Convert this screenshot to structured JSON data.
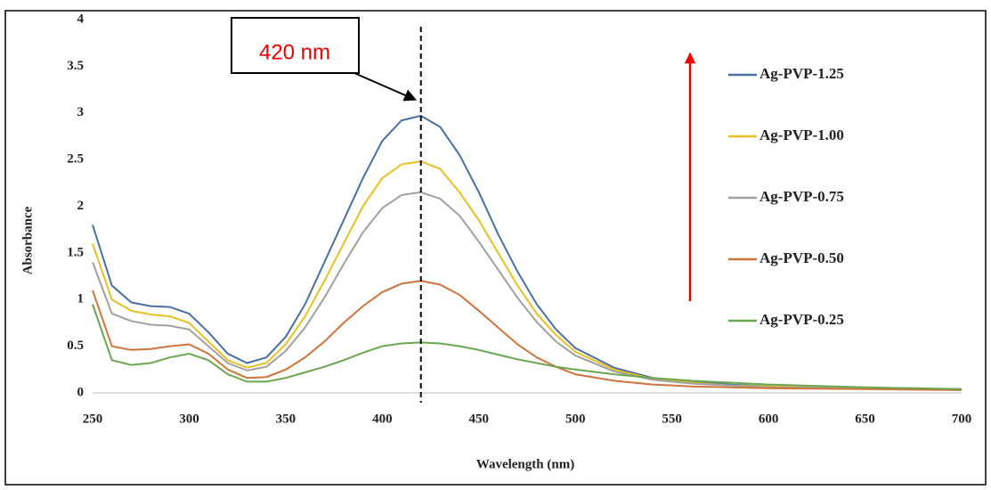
{
  "chart_data": {
    "type": "line",
    "xlabel": "Wavelength (nm)",
    "ylabel": "Absorbance",
    "x": [
      250,
      260,
      270,
      280,
      290,
      300,
      310,
      320,
      330,
      340,
      350,
      360,
      370,
      380,
      390,
      400,
      410,
      420,
      430,
      440,
      450,
      460,
      470,
      480,
      490,
      500,
      520,
      540,
      560,
      580,
      600,
      650,
      700
    ],
    "series": [
      {
        "name": "Ag-PVP-1.25",
        "color": "#4a6fa5",
        "values": [
          1.8,
          1.15,
          0.97,
          0.93,
          0.92,
          0.85,
          0.65,
          0.42,
          0.32,
          0.38,
          0.6,
          0.95,
          1.4,
          1.85,
          2.3,
          2.7,
          2.92,
          2.97,
          2.85,
          2.55,
          2.15,
          1.7,
          1.3,
          0.95,
          0.68,
          0.48,
          0.27,
          0.16,
          0.12,
          0.09,
          0.07,
          0.05,
          0.04
        ]
      },
      {
        "name": "Ag-PVP-1.00",
        "color": "#e8c020",
        "values": [
          1.6,
          1.0,
          0.88,
          0.84,
          0.82,
          0.75,
          0.55,
          0.35,
          0.27,
          0.32,
          0.52,
          0.82,
          1.2,
          1.6,
          2.0,
          2.3,
          2.45,
          2.48,
          2.4,
          2.15,
          1.85,
          1.5,
          1.15,
          0.85,
          0.62,
          0.44,
          0.25,
          0.15,
          0.11,
          0.08,
          0.07,
          0.05,
          0.04
        ]
      },
      {
        "name": "Ag-PVP-0.75",
        "color": "#a0a0a0",
        "values": [
          1.4,
          0.85,
          0.77,
          0.73,
          0.72,
          0.68,
          0.5,
          0.32,
          0.24,
          0.28,
          0.45,
          0.7,
          1.02,
          1.38,
          1.72,
          1.98,
          2.12,
          2.15,
          2.08,
          1.9,
          1.62,
          1.32,
          1.02,
          0.76,
          0.55,
          0.4,
          0.23,
          0.14,
          0.1,
          0.08,
          0.06,
          0.05,
          0.04
        ]
      },
      {
        "name": "Ag-PVP-0.50",
        "color": "#d0743c",
        "values": [
          1.1,
          0.5,
          0.46,
          0.47,
          0.5,
          0.52,
          0.42,
          0.25,
          0.16,
          0.17,
          0.25,
          0.38,
          0.55,
          0.75,
          0.93,
          1.08,
          1.17,
          1.2,
          1.16,
          1.05,
          0.88,
          0.7,
          0.52,
          0.38,
          0.28,
          0.2,
          0.13,
          0.09,
          0.07,
          0.06,
          0.05,
          0.04,
          0.03
        ]
      },
      {
        "name": "Ag-PVP-0.25",
        "color": "#6aa84f",
        "values": [
          0.95,
          0.35,
          0.3,
          0.32,
          0.38,
          0.42,
          0.35,
          0.2,
          0.12,
          0.12,
          0.16,
          0.22,
          0.28,
          0.35,
          0.43,
          0.5,
          0.53,
          0.54,
          0.53,
          0.5,
          0.46,
          0.41,
          0.36,
          0.32,
          0.28,
          0.25,
          0.2,
          0.16,
          0.13,
          0.11,
          0.09,
          0.06,
          0.04
        ]
      }
    ],
    "xlim": [
      250,
      700
    ],
    "xticks": [
      250,
      300,
      350,
      400,
      450,
      500,
      550,
      600,
      650,
      700
    ],
    "ylim": [
      0,
      4
    ],
    "yticks": [
      0,
      0.5,
      1,
      1.5,
      2,
      2.5,
      3,
      3.5,
      4
    ],
    "grid": false,
    "marker": {
      "label": "420 nm",
      "x": 420
    }
  }
}
